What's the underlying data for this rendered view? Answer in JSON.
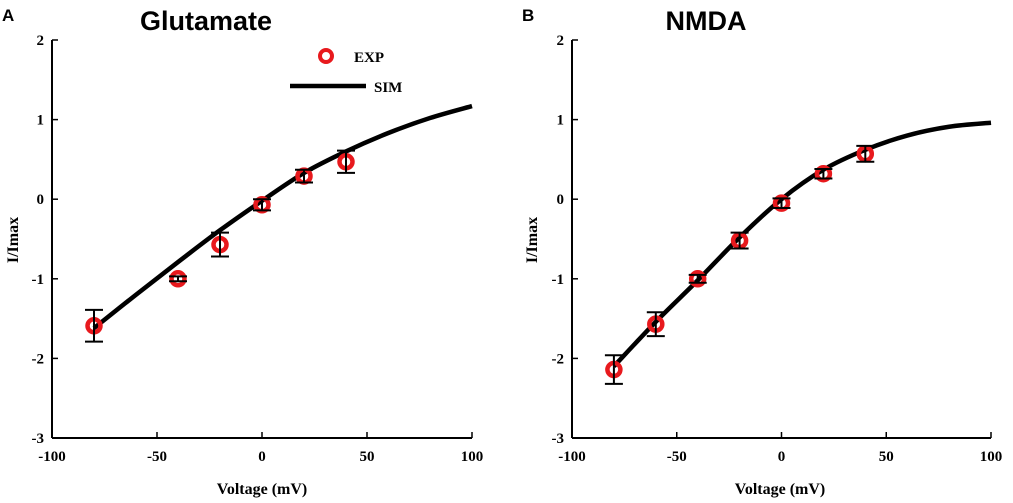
{
  "colors": {
    "exp": "#e8191d",
    "sim": "#000000",
    "axis": "#000000"
  },
  "chart_data": [
    {
      "panel": "A",
      "type": "scatter",
      "title": "Glutamate",
      "xlabel": "Voltage (mV)",
      "ylabel": "I/Imax",
      "xlim": [
        -100,
        100
      ],
      "ylim": [
        -3,
        2
      ],
      "xticks": [
        -100,
        -50,
        0,
        50,
        100
      ],
      "yticks": [
        -3,
        -2,
        -1,
        0,
        1,
        2
      ],
      "xtick_labels": [
        "-100",
        "-50",
        "0",
        "50",
        "100"
      ],
      "ytick_labels": [
        "-3",
        "-2",
        "-1",
        "0",
        "1",
        "2"
      ],
      "legend": {
        "position": "top-right",
        "exp_label": "EXP",
        "sim_label": "SIM"
      },
      "series": [
        {
          "name": "EXP",
          "kind": "points",
          "x": [
            -80,
            -40,
            -20,
            0,
            20,
            40
          ],
          "y": [
            -1.59,
            -1.0,
            -0.57,
            -0.07,
            0.29,
            0.47
          ],
          "err": [
            0.2,
            0.03,
            0.15,
            0.07,
            0.08,
            0.14
          ]
        },
        {
          "name": "SIM",
          "kind": "line",
          "x": [
            -80,
            -60,
            -40,
            -20,
            0,
            20,
            40,
            60,
            80,
            100
          ],
          "y": [
            -1.62,
            -1.2,
            -0.79,
            -0.39,
            -0.02,
            0.33,
            0.6,
            0.83,
            1.02,
            1.17
          ]
        }
      ]
    },
    {
      "panel": "B",
      "type": "scatter",
      "title": "NMDA",
      "xlabel": "Voltage (mV)",
      "ylabel": "I/Imax",
      "xlim": [
        -100,
        100
      ],
      "ylim": [
        -3,
        2
      ],
      "xticks": [
        -100,
        -50,
        0,
        50,
        100
      ],
      "yticks": [
        -3,
        -2,
        -1,
        0,
        1,
        2
      ],
      "xtick_labels": [
        "-100",
        "-50",
        "0",
        "50",
        "100"
      ],
      "ytick_labels": [
        "-3",
        "-2",
        "-1",
        "0",
        "1",
        "2"
      ],
      "series": [
        {
          "name": "EXP",
          "kind": "points",
          "x": [
            -80,
            -60,
            -40,
            -20,
            0,
            20,
            40
          ],
          "y": [
            -2.14,
            -1.57,
            -1.0,
            -0.52,
            -0.05,
            0.32,
            0.57
          ],
          "err": [
            0.18,
            0.15,
            0.05,
            0.1,
            0.06,
            0.06,
            0.1
          ]
        },
        {
          "name": "SIM",
          "kind": "line",
          "x": [
            -80,
            -60,
            -40,
            -20,
            0,
            20,
            40,
            60,
            80,
            100
          ],
          "y": [
            -2.1,
            -1.54,
            -1.02,
            -0.48,
            0.0,
            0.37,
            0.62,
            0.8,
            0.91,
            0.96
          ]
        }
      ]
    }
  ]
}
